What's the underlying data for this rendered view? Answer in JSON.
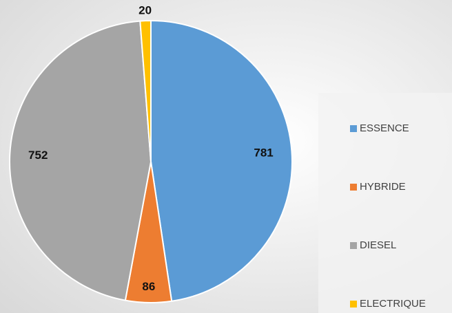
{
  "chart_data": {
    "type": "pie",
    "categories": [
      "ESSENCE",
      "HYBRIDE",
      "DIESEL",
      "ELECTRIQUE"
    ],
    "values": [
      781,
      86,
      752,
      20
    ],
    "colors": [
      "#5b9bd5",
      "#ed7d31",
      "#a5a5a5",
      "#ffc000"
    ],
    "legend": "right"
  }
}
